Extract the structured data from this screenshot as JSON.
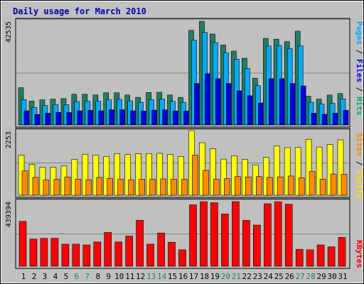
{
  "chart_data": {
    "type": "bar",
    "title": "Daily usage for March 2010",
    "categories": [
      "1",
      "2",
      "3",
      "4",
      "5",
      "6",
      "7",
      "8",
      "9",
      "10",
      "11",
      "12",
      "13",
      "14",
      "15",
      "16",
      "17",
      "18",
      "19",
      "20",
      "21",
      "22",
      "23",
      "24",
      "25",
      "26",
      "27",
      "28",
      "29",
      "30",
      "31"
    ],
    "weekend_days": [
      "6",
      "7",
      "13",
      "14",
      "20",
      "21",
      "27",
      "28"
    ],
    "panels": [
      {
        "id": "hits",
        "ymax": 42535,
        "ymax_label": "42535",
        "axis_labels": [
          {
            "text": "Pages",
            "color": "#00aaff"
          },
          {
            "text": " / ",
            "color": "#000000"
          },
          {
            "text": "Files",
            "color": "#0000ff"
          },
          {
            "text": " / ",
            "color": "#000000"
          },
          {
            "text": "Hits",
            "color": "#00aa77"
          }
        ],
        "series": [
          {
            "color": "#1f7f66",
            "values": [
              15300,
              9800,
              10300,
              10600,
              10800,
              12600,
              12600,
              12300,
              13200,
              13200,
              12300,
              11300,
              13300,
              13400,
              12300,
              11300,
              38800,
              42535,
              37300,
              32800,
              30300,
              27400,
              19200,
              35500,
              35200,
              34200,
              38500,
              11800,
              10600,
              12300,
              12900
            ]
          },
          {
            "color": "#00aaff",
            "values": [
              10400,
              7200,
              8000,
              8400,
              8300,
              9600,
              9700,
              9700,
              10300,
              10500,
              9900,
              9300,
              10400,
              10600,
              9700,
              9300,
              34800,
              38000,
              33800,
              29700,
              27000,
              23200,
              16100,
              32400,
              32600,
              31300,
              32500,
              9300,
              8600,
              8900,
              10700
            ]
          },
          {
            "color": "#0000dd",
            "values": [
              5800,
              4300,
              4800,
              5200,
              5100,
              5800,
              6000,
              5800,
              6200,
              6200,
              5800,
              5700,
              6100,
              6200,
              5700,
              5700,
              17000,
              21000,
              19000,
              17000,
              14000,
              12000,
              9000,
              19000,
              19000,
              17000,
              16000,
              4800,
              4400,
              4800,
              6000
            ]
          }
        ]
      },
      {
        "id": "visits",
        "ymax": 2253,
        "ymax_label": "2253",
        "axis_labels": [
          {
            "text": "Sites",
            "color": "#ff8800"
          },
          {
            "text": " / ",
            "color": "#000000"
          },
          {
            "text": "Visits",
            "color": "#ffdd00"
          }
        ],
        "series": [
          {
            "color": "#ffff00",
            "values": [
              1400,
              1080,
              980,
              980,
              1020,
              1250,
              1430,
              1400,
              1350,
              1450,
              1420,
              1450,
              1450,
              1460,
              1420,
              1350,
              2253,
              1830,
              1620,
              1260,
              1380,
              1250,
              1060,
              1320,
              1720,
              1660,
              1670,
              1950,
              1680,
              1770,
              1930
            ]
          },
          {
            "color": "#ff8c00",
            "values": [
              850,
              620,
              530,
              560,
              640,
              560,
              540,
              620,
              590,
              560,
              540,
              560,
              560,
              570,
              560,
              560,
              1400,
              870,
              560,
              580,
              650,
              640,
              650,
              620,
              640,
              670,
              610,
              830,
              560,
              740,
              730
            ]
          }
        ]
      },
      {
        "id": "kbytes",
        "ymax": 439394,
        "ymax_label": "439394",
        "axis_labels": [
          {
            "text": "KBytes",
            "color": "#ff0000"
          }
        ],
        "series": [
          {
            "color": "#ff0000",
            "values": [
              305000,
              185000,
              190000,
              190000,
              150000,
              150000,
              145000,
              165000,
              230000,
              165000,
              205000,
              313000,
              150000,
              226000,
              163000,
              112000,
              418000,
              439394,
              432000,
              356000,
              439394,
              312000,
              280000,
              425000,
              439000,
              422000,
              115000,
              112000,
              145000,
              132000,
              196000
            ]
          }
        ]
      }
    ]
  }
}
